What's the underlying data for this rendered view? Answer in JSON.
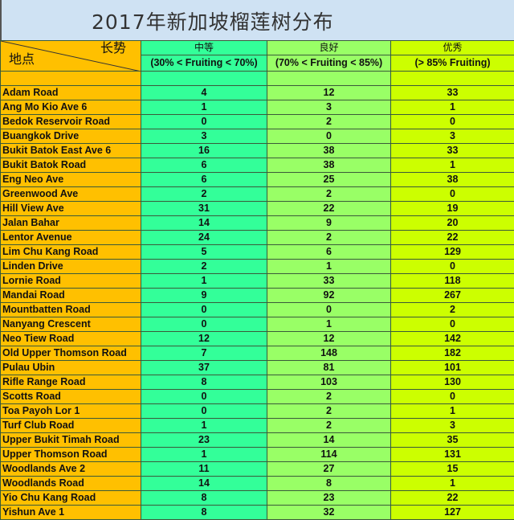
{
  "title": "2017年新加坡榴莲树分布",
  "header": {
    "corner_top": "长势",
    "corner_bottom": "地点",
    "columns": [
      {
        "label": "中等",
        "range": "(30% < Fruiting < 70%)"
      },
      {
        "label": "良好",
        "range": "(70% < Fruiting < 85%)"
      },
      {
        "label": "优秀",
        "range": "(> 85% Fruiting)"
      }
    ]
  },
  "colors": {
    "location": "#ffc000",
    "medium": "#33ff99",
    "good": "#99ff66",
    "excellent": "#ccff00",
    "title_bg": "#cfe2f3"
  },
  "rows": [
    {
      "location": "Adam Road",
      "values": [
        4,
        12,
        33
      ]
    },
    {
      "location": "Ang Mo Kio Ave 6",
      "values": [
        1,
        3,
        1
      ]
    },
    {
      "location": "Bedok Reservoir Road",
      "values": [
        0,
        2,
        0
      ]
    },
    {
      "location": "Buangkok Drive",
      "values": [
        3,
        0,
        3
      ]
    },
    {
      "location": "Bukit Batok East Ave 6",
      "values": [
        16,
        38,
        33
      ]
    },
    {
      "location": "Bukit Batok Road",
      "values": [
        6,
        38,
        1
      ]
    },
    {
      "location": "Eng Neo Ave",
      "values": [
        6,
        25,
        38
      ]
    },
    {
      "location": "Greenwood Ave",
      "values": [
        2,
        2,
        0
      ]
    },
    {
      "location": "Hill View Ave",
      "values": [
        31,
        22,
        19
      ]
    },
    {
      "location": "Jalan Bahar",
      "values": [
        14,
        9,
        20
      ]
    },
    {
      "location": "Lentor Avenue",
      "values": [
        24,
        2,
        22
      ]
    },
    {
      "location": "Lim Chu Kang Road",
      "values": [
        5,
        6,
        129
      ]
    },
    {
      "location": "Linden Drive",
      "values": [
        2,
        1,
        0
      ]
    },
    {
      "location": "Lornie Road",
      "values": [
        1,
        33,
        118
      ]
    },
    {
      "location": "Mandai Road",
      "values": [
        9,
        92,
        267
      ]
    },
    {
      "location": "Mountbatten Road",
      "values": [
        0,
        0,
        2
      ]
    },
    {
      "location": "Nanyang Crescent",
      "values": [
        0,
        1,
        0
      ]
    },
    {
      "location": "Neo Tiew Road",
      "values": [
        12,
        12,
        142
      ]
    },
    {
      "location": "Old Upper Thomson Road",
      "values": [
        7,
        148,
        182
      ]
    },
    {
      "location": "Pulau Ubin",
      "values": [
        37,
        81,
        101
      ]
    },
    {
      "location": "Rifle Range Road",
      "values": [
        8,
        103,
        130
      ]
    },
    {
      "location": "Scotts Road",
      "values": [
        0,
        2,
        0
      ]
    },
    {
      "location": "Toa Payoh Lor 1",
      "values": [
        0,
        2,
        1
      ]
    },
    {
      "location": "Turf Club Road",
      "values": [
        1,
        2,
        3
      ]
    },
    {
      "location": "Upper Bukit Timah Road",
      "values": [
        23,
        14,
        35
      ]
    },
    {
      "location": "Upper Thomson Road",
      "values": [
        1,
        114,
        131
      ]
    },
    {
      "location": "Woodlands Ave 2",
      "values": [
        11,
        27,
        15
      ]
    },
    {
      "location": "Woodlands Road",
      "values": [
        14,
        8,
        1
      ]
    },
    {
      "location": "Yio Chu Kang Road",
      "values": [
        8,
        23,
        22
      ]
    },
    {
      "location": "Yishun Ave 1",
      "values": [
        8,
        32,
        127
      ]
    }
  ]
}
